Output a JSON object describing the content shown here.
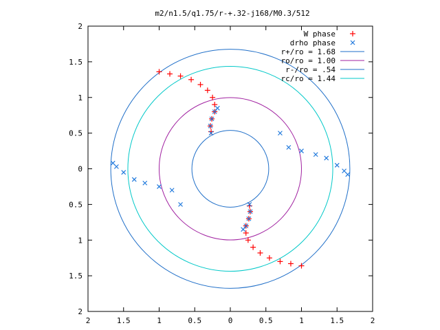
{
  "chart_data": {
    "type": "scatter",
    "title": "m2/n1.5/q1.75/r-+.32-j168/M0.3/512",
    "xlim": [
      -2,
      2
    ],
    "ylim": [
      -2,
      2
    ],
    "x_tick_values": [
      -2,
      -1.5,
      -1,
      -0.5,
      0,
      0.5,
      1,
      1.5,
      2
    ],
    "x_tick_labels": [
      "2",
      "1.5",
      "1",
      "0.5",
      "0",
      "0.5",
      "1",
      "1.5",
      "2"
    ],
    "y_tick_values": [
      2,
      1.5,
      1,
      0.5,
      0,
      -0.5,
      -1,
      -1.5,
      -2
    ],
    "y_tick_labels": [
      "2",
      "1.5",
      "1",
      "0.5",
      "0",
      "0.5",
      "1",
      "1.5",
      "2"
    ],
    "grid": false,
    "legend_position": "top-right",
    "colors": {
      "w_phase": "#ff0000",
      "drho_phase": "#1e78dc",
      "r_plus": "#1e6ec8",
      "ro": "#a020a0",
      "r_minus": "#1e6ec8",
      "rc": "#00c8c8"
    },
    "series": [
      {
        "name": "W phase",
        "marker": "+",
        "points": [
          [
            -1.0,
            1.36
          ],
          [
            -0.85,
            1.33
          ],
          [
            -0.7,
            1.3
          ],
          [
            -0.55,
            1.25
          ],
          [
            -0.42,
            1.18
          ],
          [
            -0.32,
            1.1
          ],
          [
            -0.25,
            1.0
          ],
          [
            -0.22,
            0.9
          ],
          [
            -0.22,
            0.8
          ],
          [
            -0.26,
            0.7
          ],
          [
            -0.28,
            0.6
          ],
          [
            -0.27,
            0.52
          ],
          [
            1.0,
            -1.36
          ],
          [
            0.85,
            -1.33
          ],
          [
            0.7,
            -1.3
          ],
          [
            0.55,
            -1.25
          ],
          [
            0.42,
            -1.18
          ],
          [
            0.32,
            -1.1
          ],
          [
            0.25,
            -1.0
          ],
          [
            0.22,
            -0.9
          ],
          [
            0.22,
            -0.8
          ],
          [
            0.26,
            -0.7
          ],
          [
            0.28,
            -0.6
          ],
          [
            0.27,
            -0.52
          ]
        ]
      },
      {
        "name": "drho phase",
        "marker": "x",
        "points": [
          [
            -0.27,
            0.5
          ],
          [
            -0.28,
            0.6
          ],
          [
            -0.26,
            0.7
          ],
          [
            -0.22,
            0.8
          ],
          [
            -0.18,
            0.85
          ],
          [
            0.27,
            -0.5
          ],
          [
            0.28,
            -0.6
          ],
          [
            0.26,
            -0.7
          ],
          [
            0.22,
            -0.8
          ],
          [
            0.18,
            -0.85
          ],
          [
            0.7,
            0.5
          ],
          [
            0.82,
            0.3
          ],
          [
            1.0,
            0.25
          ],
          [
            1.2,
            0.2
          ],
          [
            1.35,
            0.15
          ],
          [
            1.5,
            0.05
          ],
          [
            1.6,
            -0.03
          ],
          [
            1.65,
            -0.08
          ],
          [
            -0.7,
            -0.5
          ],
          [
            -0.82,
            -0.3
          ],
          [
            -1.0,
            -0.25
          ],
          [
            -1.2,
            -0.2
          ],
          [
            -1.35,
            -0.15
          ],
          [
            -1.5,
            -0.05
          ],
          [
            -1.6,
            0.03
          ],
          [
            -1.65,
            0.08
          ]
        ]
      }
    ],
    "circles": [
      {
        "name": "r+/ro = 1.68",
        "radius": 1.68
      },
      {
        "name": "ro/ro = 1.00",
        "radius": 1.0
      },
      {
        "name": "r-/ro = .54",
        "radius": 0.54
      },
      {
        "name": "rc/ro = 1.44",
        "radius": 1.44
      }
    ]
  }
}
